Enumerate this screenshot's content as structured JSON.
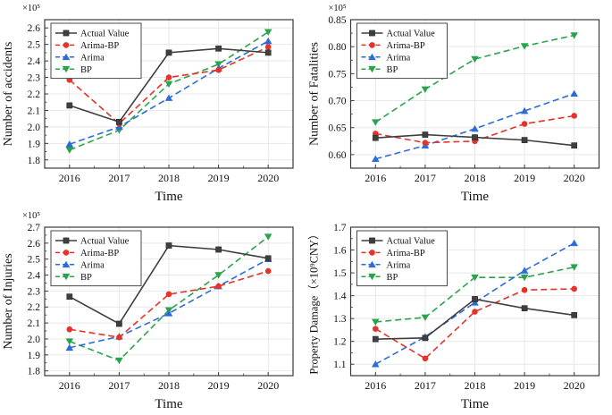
{
  "figure": {
    "xlabel": "Time",
    "years": [
      "2016",
      "2017",
      "2018",
      "2019",
      "2020"
    ],
    "legend_labels": [
      "Actual Value",
      "Arima-BP",
      "Arima",
      "BP"
    ],
    "colors": {
      "actual": "#3f3f3f",
      "arima_bp": "#e63329",
      "arima": "#2b6cd8",
      "bp": "#2aa44c",
      "grid": "#e8e8e8",
      "frame": "#3a3a3a"
    }
  },
  "chart_data": [
    {
      "id": "accidents",
      "type": "line",
      "title": "",
      "xlabel": "Time",
      "ylabel": "Number of accidents",
      "exponent_label": "×10⁵",
      "x": [
        "2016",
        "2017",
        "2018",
        "2019",
        "2020"
      ],
      "ylim": [
        1.75,
        2.65
      ],
      "yticks": [
        1.8,
        1.9,
        2.0,
        2.1,
        2.2,
        2.3,
        2.4,
        2.5,
        2.6
      ],
      "ytick_labels": [
        "1.8",
        "1.9",
        "2.0",
        "2.1",
        "2.2",
        "2.3",
        "2.4",
        "2.5",
        "2.6"
      ],
      "grid": true,
      "legend_position": "top-left",
      "series": [
        {
          "name": "Actual Value",
          "color": "#3f3f3f",
          "marker": "square",
          "line": "solid",
          "values": [
            2.13,
            2.03,
            2.45,
            2.475,
            2.45
          ]
        },
        {
          "name": "Arima-BP",
          "color": "#e63329",
          "marker": "circle",
          "line": "dashed",
          "values": [
            2.285,
            2.02,
            2.3,
            2.345,
            2.485
          ]
        },
        {
          "name": "Arima",
          "color": "#2b6cd8",
          "marker": "triangle-up",
          "line": "dashed",
          "values": [
            1.895,
            2.0,
            2.175,
            2.355,
            2.52
          ]
        },
        {
          "name": "BP",
          "color": "#2aa44c",
          "marker": "triangle-down",
          "line": "dashed",
          "values": [
            1.86,
            1.98,
            2.26,
            2.38,
            2.575
          ]
        }
      ]
    },
    {
      "id": "fatalities",
      "type": "line",
      "title": "",
      "xlabel": "Time",
      "ylabel": "Number of Fatalities",
      "exponent_label": "×10⁵",
      "x": [
        "2016",
        "2017",
        "2018",
        "2019",
        "2020"
      ],
      "ylim": [
        0.575,
        0.85
      ],
      "yticks": [
        0.6,
        0.65,
        0.7,
        0.75,
        0.8,
        0.85
      ],
      "ytick_labels": [
        "0.60",
        "0.65",
        "0.70",
        "0.75",
        "0.80",
        "0.85"
      ],
      "grid": true,
      "legend_position": "top-left",
      "series": [
        {
          "name": "Actual Value",
          "color": "#3f3f3f",
          "marker": "square",
          "line": "solid",
          "values": [
            0.631,
            0.637,
            0.632,
            0.627,
            0.617
          ]
        },
        {
          "name": "Arima-BP",
          "color": "#e63329",
          "marker": "circle",
          "line": "dashed",
          "values": [
            0.639,
            0.622,
            0.625,
            0.657,
            0.672
          ]
        },
        {
          "name": "Arima",
          "color": "#2b6cd8",
          "marker": "triangle-up",
          "line": "dashed",
          "values": [
            0.592,
            0.617,
            0.648,
            0.681,
            0.713
          ]
        },
        {
          "name": "BP",
          "color": "#2aa44c",
          "marker": "triangle-down",
          "line": "dashed",
          "values": [
            0.66,
            0.721,
            0.777,
            0.801,
            0.821
          ]
        }
      ]
    },
    {
      "id": "injuries",
      "type": "line",
      "title": "",
      "xlabel": "Time",
      "ylabel": "Number of Injuries",
      "exponent_label": "×10⁵",
      "x": [
        "2016",
        "2017",
        "2018",
        "2019",
        "2020"
      ],
      "ylim": [
        1.77,
        2.7
      ],
      "yticks": [
        1.8,
        1.9,
        2.0,
        2.1,
        2.2,
        2.3,
        2.4,
        2.5,
        2.6,
        2.7
      ],
      "ytick_labels": [
        "1.8",
        "1.9",
        "2.0",
        "2.1",
        "2.2",
        "2.3",
        "2.4",
        "2.5",
        "2.6",
        "2.7"
      ],
      "grid": true,
      "legend_position": "top-left",
      "series": [
        {
          "name": "Actual Value",
          "color": "#3f3f3f",
          "marker": "square",
          "line": "solid",
          "values": [
            2.265,
            2.095,
            2.585,
            2.56,
            2.505
          ]
        },
        {
          "name": "Arima-BP",
          "color": "#e63329",
          "marker": "circle",
          "line": "dashed",
          "values": [
            2.06,
            2.01,
            2.28,
            2.33,
            2.425
          ]
        },
        {
          "name": "Arima",
          "color": "#2b6cd8",
          "marker": "triangle-up",
          "line": "dashed",
          "values": [
            1.945,
            2.015,
            2.16,
            2.33,
            2.5
          ]
        },
        {
          "name": "BP",
          "color": "#2aa44c",
          "marker": "triangle-down",
          "line": "dashed",
          "values": [
            1.985,
            1.865,
            2.18,
            2.4,
            2.64
          ]
        }
      ]
    },
    {
      "id": "property-damage",
      "type": "line",
      "title": "",
      "xlabel": "Time",
      "ylabel": "Property Damage（×10⁹CNY）",
      "exponent_label": "",
      "x": [
        "2016",
        "2017",
        "2018",
        "2019",
        "2020"
      ],
      "ylim": [
        1.05,
        1.7
      ],
      "yticks": [
        1.1,
        1.2,
        1.3,
        1.4,
        1.5,
        1.6,
        1.7
      ],
      "ytick_labels": [
        "1.1",
        "1.2",
        "1.3",
        "1.4",
        "1.5",
        "1.6",
        "1.7"
      ],
      "grid": true,
      "legend_position": "top-left",
      "series": [
        {
          "name": "Actual Value",
          "color": "#3f3f3f",
          "marker": "square",
          "line": "solid",
          "values": [
            1.21,
            1.215,
            1.385,
            1.345,
            1.315
          ]
        },
        {
          "name": "Arima-BP",
          "color": "#e63329",
          "marker": "circle",
          "line": "dashed",
          "values": [
            1.255,
            1.125,
            1.33,
            1.425,
            1.43
          ]
        },
        {
          "name": "Arima",
          "color": "#2b6cd8",
          "marker": "triangle-up",
          "line": "dashed",
          "values": [
            1.1,
            1.22,
            1.37,
            1.51,
            1.63
          ]
        },
        {
          "name": "BP",
          "color": "#2aa44c",
          "marker": "triangle-down",
          "line": "dashed",
          "values": [
            1.285,
            1.305,
            1.48,
            1.48,
            1.525
          ]
        }
      ]
    }
  ]
}
